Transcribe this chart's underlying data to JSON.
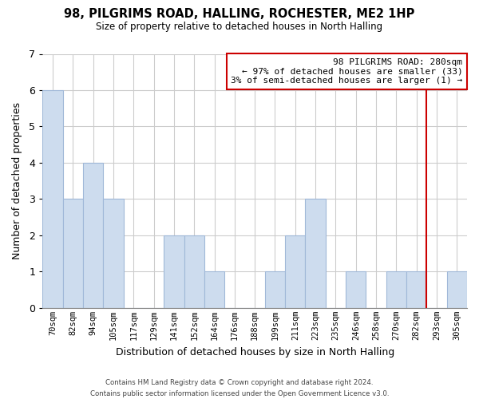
{
  "title": "98, PILGRIMS ROAD, HALLING, ROCHESTER, ME2 1HP",
  "subtitle": "Size of property relative to detached houses in North Halling",
  "xlabel": "Distribution of detached houses by size in North Halling",
  "ylabel": "Number of detached properties",
  "categories": [
    "70sqm",
    "82sqm",
    "94sqm",
    "105sqm",
    "117sqm",
    "129sqm",
    "141sqm",
    "152sqm",
    "164sqm",
    "176sqm",
    "188sqm",
    "199sqm",
    "211sqm",
    "223sqm",
    "235sqm",
    "246sqm",
    "258sqm",
    "270sqm",
    "282sqm",
    "293sqm",
    "305sqm"
  ],
  "values": [
    6,
    3,
    4,
    3,
    0,
    0,
    2,
    2,
    1,
    0,
    0,
    1,
    2,
    3,
    0,
    1,
    0,
    1,
    1,
    0,
    1
  ],
  "bar_fill_color": "#cddcee",
  "bar_edge_color": "#a0b8d8",
  "highlight_index": 18,
  "highlight_line_color": "#cc0000",
  "ylim": [
    0,
    7
  ],
  "yticks": [
    0,
    1,
    2,
    3,
    4,
    5,
    6,
    7
  ],
  "annotation_title": "98 PILGRIMS ROAD: 280sqm",
  "annotation_line1": "← 97% of detached houses are smaller (33)",
  "annotation_line2": "3% of semi-detached houses are larger (1) →",
  "annotation_box_color": "#ffffff",
  "annotation_border_color": "#cc0000",
  "footer_line1": "Contains HM Land Registry data © Crown copyright and database right 2024.",
  "footer_line2": "Contains public sector information licensed under the Open Government Licence v3.0.",
  "background_color": "#ffffff",
  "grid_color": "#cccccc"
}
